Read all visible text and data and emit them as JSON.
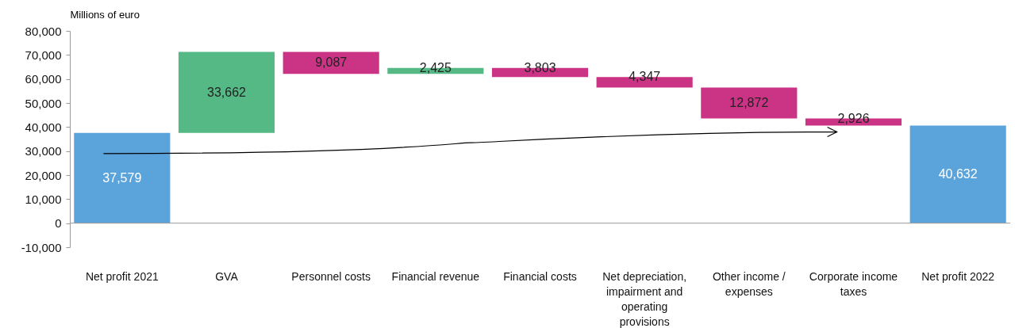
{
  "chart_data": {
    "type": "bar",
    "ylabel": "Millions of euro",
    "categories": [
      "Net profit 2021",
      "GVA",
      "Personnel costs",
      "Financial revenue",
      "Financial costs",
      "Net depreciation, impairment and operating provisions",
      "Other income / expenses",
      "Corporate income taxes",
      "Net profit 2022"
    ],
    "values": [
      37579,
      33662,
      -9087,
      2425,
      -3803,
      -4347,
      -12872,
      -2926,
      40632
    ],
    "base": [
      0,
      37579,
      71241,
      62154,
      64579,
      60776,
      56429,
      43557,
      0
    ],
    "colors": [
      "#5ba3db",
      "#55b985",
      "#cb3385",
      "#55b985",
      "#cb3385",
      "#cb3385",
      "#cb3385",
      "#cb3385",
      "#5ba3db"
    ],
    "value_labels": [
      "37,579",
      "33,662",
      "9,087",
      "2,425",
      "3,803",
      "4,347",
      "12,872",
      "2,926",
      "40,632"
    ],
    "ylim": [
      -10000,
      80000
    ],
    "yticks": [
      {
        "value": -10000,
        "label": "-10,000"
      },
      0,
      {
        "value": 10000,
        "label": "10,000"
      },
      {
        "value": 20000,
        "label": "20,000"
      },
      {
        "value": 30000,
        "label": "30,000"
      },
      {
        "value": 40000,
        "label": "40,000"
      },
      {
        "value": 50000,
        "label": "50,000"
      },
      {
        "value": 60000,
        "label": "60,000"
      },
      {
        "value": 70000,
        "label": "70,000"
      },
      {
        "value": 80000,
        "label": "80,000"
      }
    ],
    "ref_lines": [
      {
        "axis": "y",
        "value": 0,
        "color": "#999999"
      }
    ],
    "grid": false
  }
}
